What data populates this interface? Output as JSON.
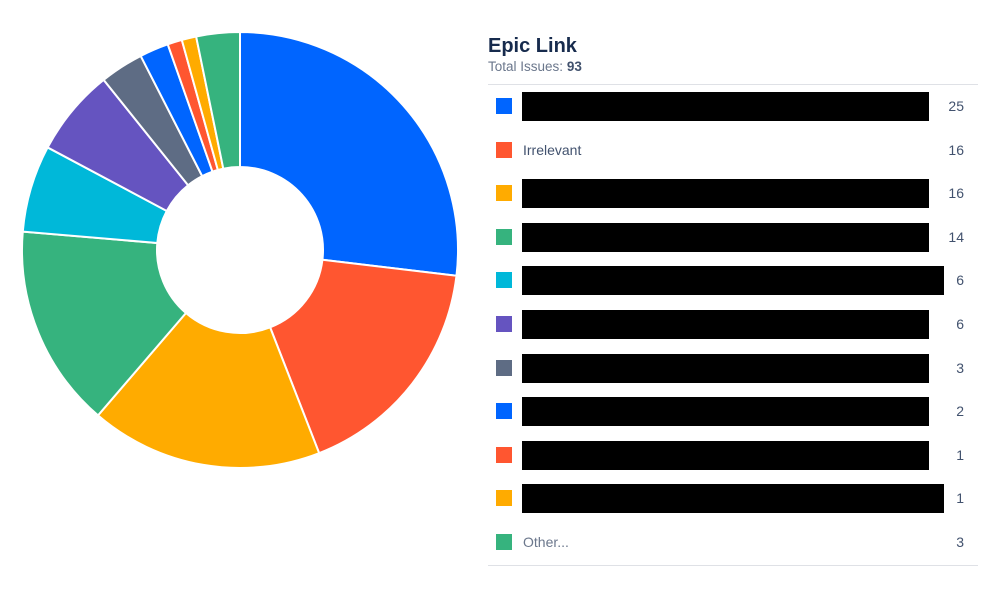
{
  "header": {
    "title": "Epic Link",
    "total_label": "Total Issues:",
    "total_value": "93"
  },
  "chart_data": {
    "type": "pie",
    "donut": true,
    "title": "Epic Link",
    "total": 93,
    "slices": [
      {
        "label": "",
        "value": 25,
        "color": "#0065ff",
        "redacted": true
      },
      {
        "label": "Irrelevant",
        "value": 16,
        "color": "#ff5630",
        "redacted": false
      },
      {
        "label": "",
        "value": 16,
        "color": "#ffab00",
        "redacted": true
      },
      {
        "label": "",
        "value": 14,
        "color": "#36b37e",
        "redacted": true
      },
      {
        "label": "",
        "value": 6,
        "color": "#00b8d9",
        "redacted": true
      },
      {
        "label": "",
        "value": 6,
        "color": "#6554c0",
        "redacted": true
      },
      {
        "label": "",
        "value": 3,
        "color": "#5e6c84",
        "redacted": true
      },
      {
        "label": "",
        "value": 2,
        "color": "#0065ff",
        "redacted": true
      },
      {
        "label": "",
        "value": 1,
        "color": "#ff5630",
        "redacted": true
      },
      {
        "label": "",
        "value": 1,
        "color": "#ffab00",
        "redacted": true
      },
      {
        "label": "Other...",
        "value": 3,
        "color": "#36b37e",
        "redacted": false
      }
    ],
    "legend_position": "right"
  }
}
